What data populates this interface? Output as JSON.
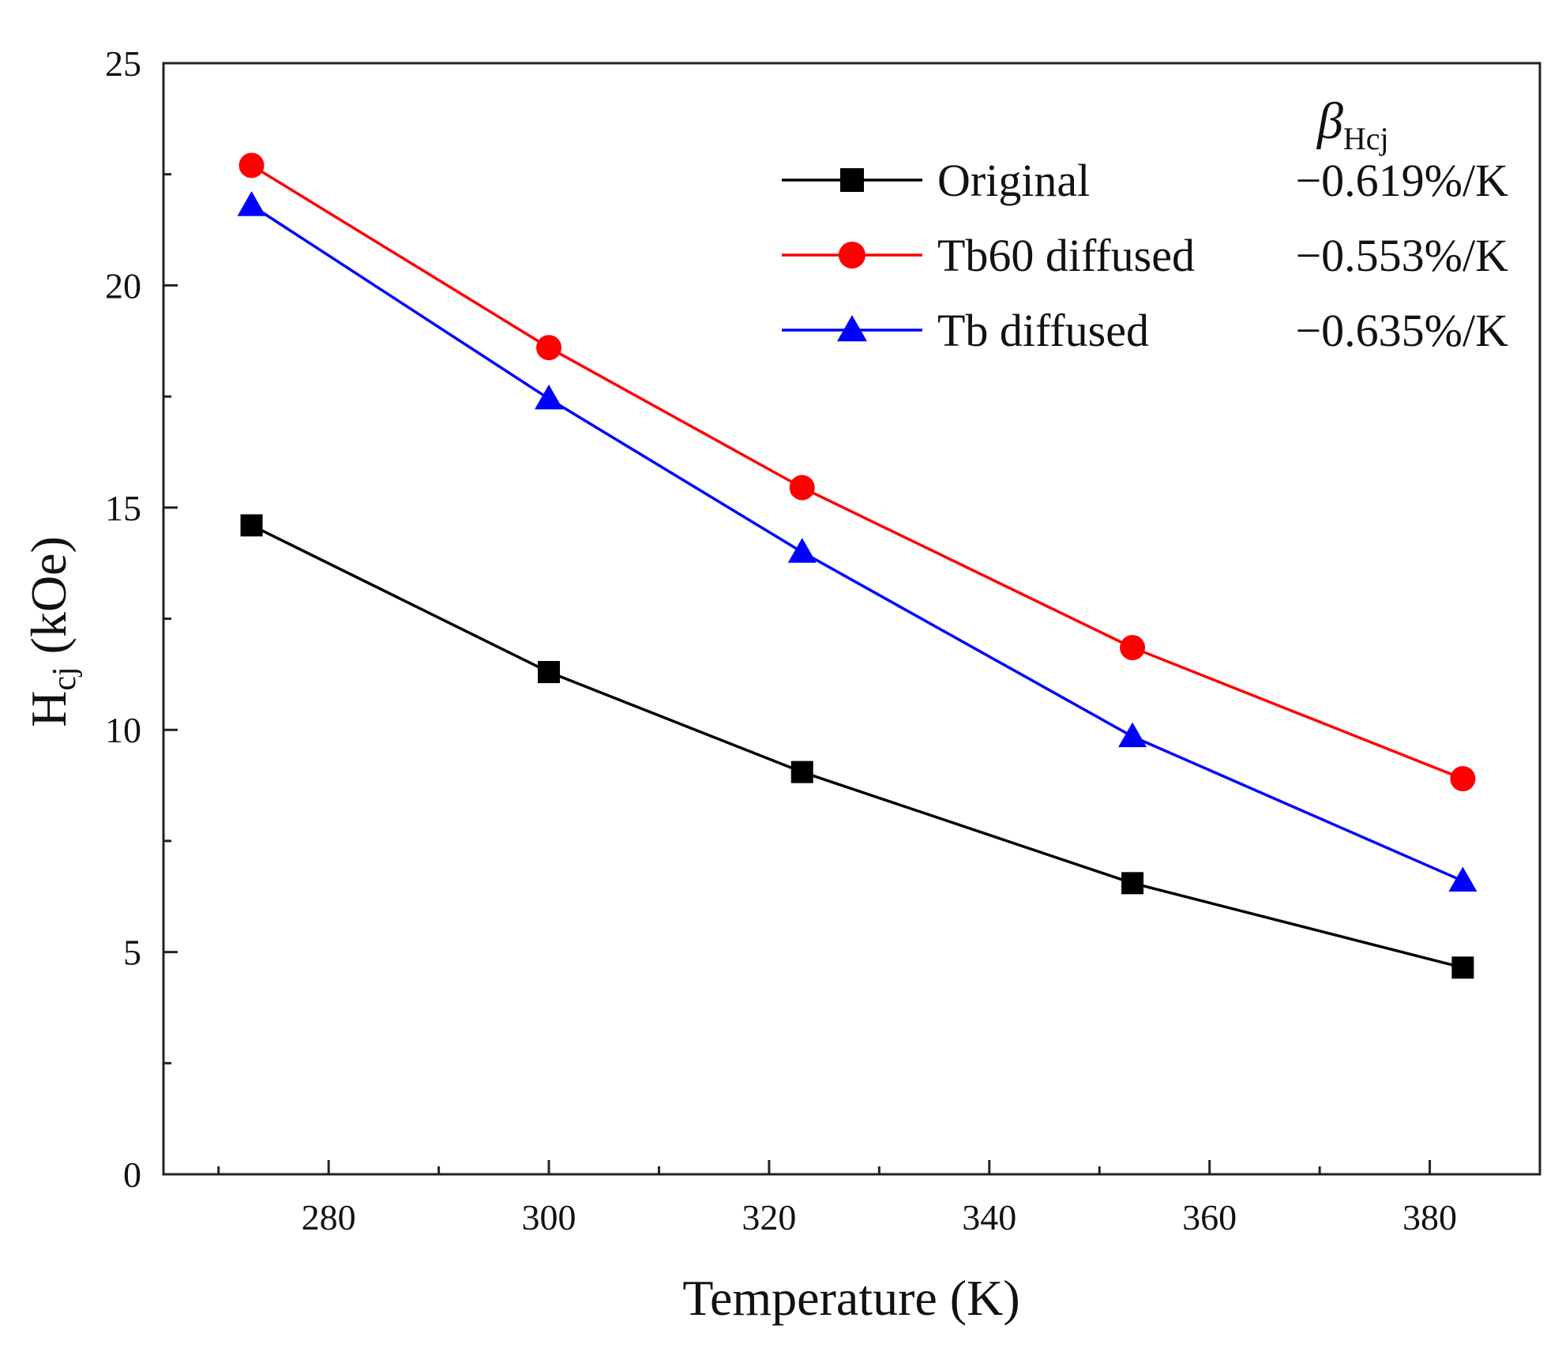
{
  "chart_data": {
    "type": "line",
    "title": "",
    "xlabel": "Temperature (K)",
    "ylabel": {
      "main": "H",
      "sub": "cj",
      "unit": " (kOe)"
    },
    "xlim": [
      265,
      390
    ],
    "ylim": [
      0,
      25
    ],
    "xticks": [
      280,
      300,
      320,
      340,
      360,
      380
    ],
    "yticks": [
      0,
      5,
      10,
      15,
      20,
      25
    ],
    "grid": false,
    "legend_position": "top-right",
    "legend_header": {
      "symbol": "β",
      "sub": "Hcj"
    },
    "series": [
      {
        "name": "Original",
        "beta": "−0.619%/K",
        "marker": "square",
        "color": "#000000",
        "x": [
          273,
          300,
          323,
          353,
          383
        ],
        "y": [
          14.6,
          11.3,
          9.05,
          6.55,
          4.65
        ]
      },
      {
        "name": "Tb60 diffused",
        "beta": "−0.553%/K",
        "marker": "circle",
        "color": "#ff0000",
        "x": [
          273,
          300,
          323,
          353,
          383
        ],
        "y": [
          22.7,
          18.6,
          15.45,
          11.85,
          8.9
        ]
      },
      {
        "name": "Tb diffused",
        "beta": "−0.635%/K",
        "marker": "triangle",
        "color": "#0000ff",
        "x": [
          273,
          300,
          323,
          353,
          383
        ],
        "y": [
          21.8,
          17.45,
          14.0,
          9.85,
          6.6
        ]
      }
    ]
  }
}
